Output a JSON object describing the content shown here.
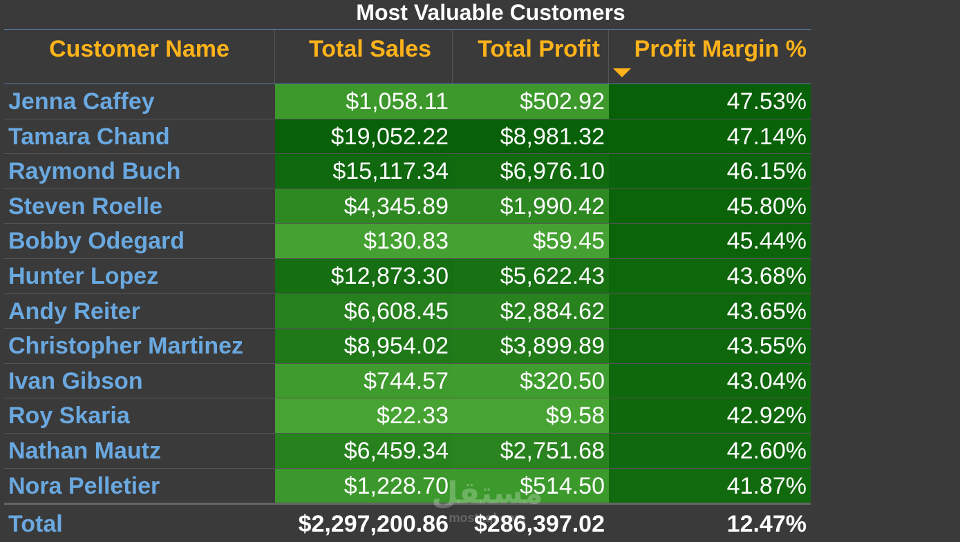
{
  "title": "Most Valuable Customers",
  "columns": [
    "Customer Name",
    "Total Sales",
    "Total Profit",
    "Profit Margin %"
  ],
  "sort": {
    "column": "Profit Margin %",
    "direction": "descending"
  },
  "colors": {
    "background": "#3a3a3a",
    "header_text": "#ffb31a",
    "name_text": "#6aa8e0",
    "value_text": "#ffffff"
  },
  "rows": [
    {
      "name": "Jenna Caffey",
      "sales": "$1,058.11",
      "profit": "$502.92",
      "margin": "47.53%",
      "sales_value": 1058.11,
      "profit_value": 502.92,
      "margin_value": 47.53
    },
    {
      "name": "Tamara Chand",
      "sales": "$19,052.22",
      "profit": "$8,981.32",
      "margin": "47.14%",
      "sales_value": 19052.22,
      "profit_value": 8981.32,
      "margin_value": 47.14
    },
    {
      "name": "Raymond Buch",
      "sales": "$15,117.34",
      "profit": "$6,976.10",
      "margin": "46.15%",
      "sales_value": 15117.34,
      "profit_value": 6976.1,
      "margin_value": 46.15
    },
    {
      "name": "Steven Roelle",
      "sales": "$4,345.89",
      "profit": "$1,990.42",
      "margin": "45.80%",
      "sales_value": 4345.89,
      "profit_value": 1990.42,
      "margin_value": 45.8
    },
    {
      "name": "Bobby Odegard",
      "sales": "$130.83",
      "profit": "$59.45",
      "margin": "45.44%",
      "sales_value": 130.83,
      "profit_value": 59.45,
      "margin_value": 45.44
    },
    {
      "name": "Hunter Lopez",
      "sales": "$12,873.30",
      "profit": "$5,622.43",
      "margin": "43.68%",
      "sales_value": 12873.3,
      "profit_value": 5622.43,
      "margin_value": 43.68
    },
    {
      "name": "Andy Reiter",
      "sales": "$6,608.45",
      "profit": "$2,884.62",
      "margin": "43.65%",
      "sales_value": 6608.45,
      "profit_value": 2884.62,
      "margin_value": 43.65
    },
    {
      "name": "Christopher Martinez",
      "sales": "$8,954.02",
      "profit": "$3,899.89",
      "margin": "43.55%",
      "sales_value": 8954.02,
      "profit_value": 3899.89,
      "margin_value": 43.55
    },
    {
      "name": "Ivan Gibson",
      "sales": "$744.57",
      "profit": "$320.50",
      "margin": "43.04%",
      "sales_value": 744.57,
      "profit_value": 320.5,
      "margin_value": 43.04
    },
    {
      "name": "Roy Skaria",
      "sales": "$22.33",
      "profit": "$9.58",
      "margin": "42.92%",
      "sales_value": 22.33,
      "profit_value": 9.58,
      "margin_value": 42.92
    },
    {
      "name": "Nathan Mautz",
      "sales": "$6,459.34",
      "profit": "$2,751.68",
      "margin": "42.60%",
      "sales_value": 6459.34,
      "profit_value": 2751.68,
      "margin_value": 42.6
    },
    {
      "name": "Nora Pelletier",
      "sales": "$1,228.70",
      "profit": "$514.50",
      "margin": "41.87%",
      "sales_value": 1228.7,
      "profit_value": 514.5,
      "margin_value": 41.87
    }
  ],
  "total": {
    "label": "Total",
    "sales": "$2,297,200.86",
    "profit": "$286,397.02",
    "margin": "12.47%"
  },
  "watermark": {
    "logo": "مستقل",
    "text": "mostaql.com"
  }
}
